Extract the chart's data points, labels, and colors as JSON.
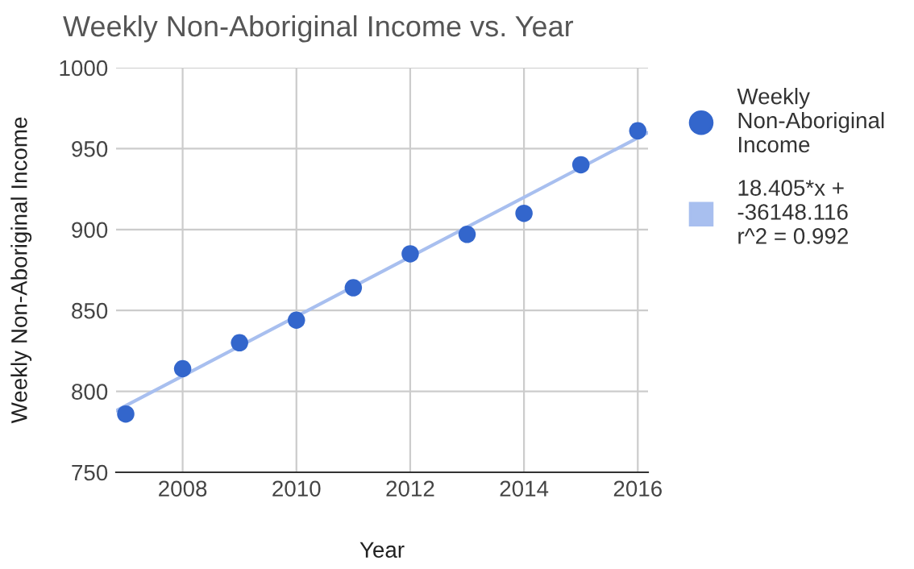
{
  "chart_data": {
    "type": "scatter",
    "title": "Weekly Non-Aboriginal Income vs. Year",
    "xlabel": "Year",
    "ylabel": "Weekly Non-Aboriginal Income",
    "series": [
      {
        "name": "Weekly Non-Aboriginal Income",
        "color": "#3366cc",
        "marker": "circle",
        "x": [
          2007,
          2008,
          2009,
          2010,
          2011,
          2012,
          2013,
          2014,
          2015,
          2016
        ],
        "values": [
          786,
          814,
          830,
          844,
          864,
          885,
          897,
          910,
          940,
          961
        ]
      },
      {
        "name": "18.405*x + -36148.116 r^2 = 0.992",
        "type": "line",
        "color": "#a8bfef",
        "x": [
          2006.83,
          2016.18
        ],
        "values": [
          788,
          960
        ]
      }
    ],
    "xlim": [
      2006.83,
      2016.18
    ],
    "xticks": [
      2008,
      2010,
      2012,
      2014,
      2016
    ],
    "ylim": [
      750,
      1000
    ],
    "yticks": [
      750,
      800,
      850,
      900,
      950,
      1000
    ],
    "grid": true,
    "legend": "right"
  }
}
